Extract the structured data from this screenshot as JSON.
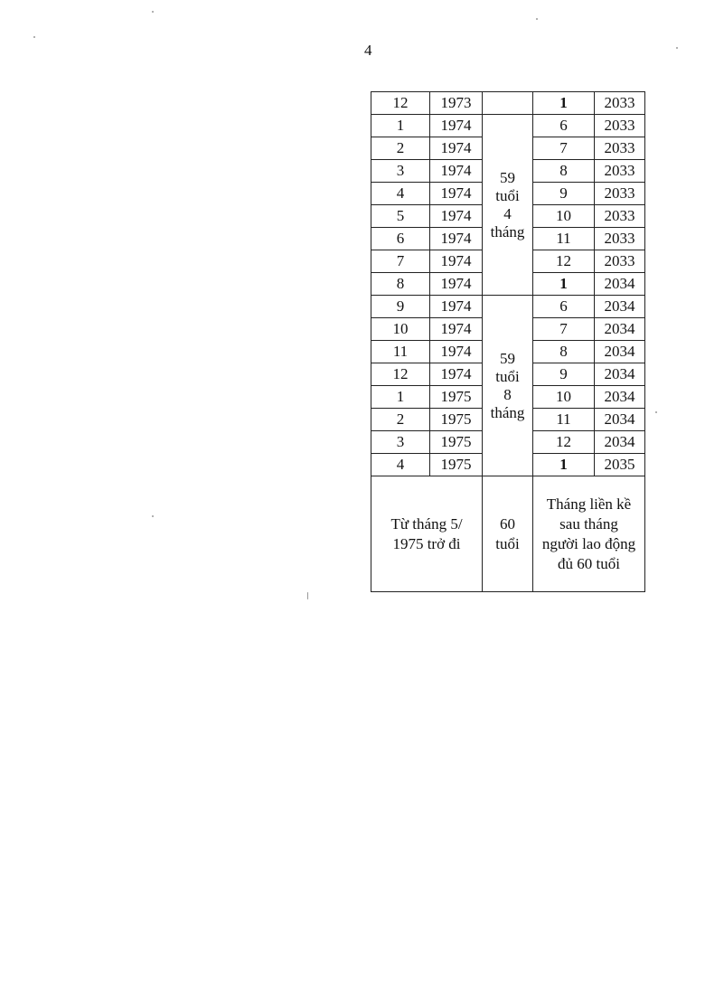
{
  "page_number": "4",
  "table": {
    "rows": [
      {
        "birth_month": "12",
        "birth_year": "1973",
        "retire_month": "1",
        "retire_year": "2033",
        "bold": true
      },
      {
        "birth_month": "1",
        "birth_year": "1974",
        "retire_month": "6",
        "retire_year": "2033",
        "bold": false
      },
      {
        "birth_month": "2",
        "birth_year": "1974",
        "retire_month": "7",
        "retire_year": "2033",
        "bold": false
      },
      {
        "birth_month": "3",
        "birth_year": "1974",
        "retire_month": "8",
        "retire_year": "2033",
        "bold": false
      },
      {
        "birth_month": "4",
        "birth_year": "1974",
        "retire_month": "9",
        "retire_year": "2033",
        "bold": false
      },
      {
        "birth_month": "5",
        "birth_year": "1974",
        "retire_month": "10",
        "retire_year": "2033",
        "bold": false
      },
      {
        "birth_month": "6",
        "birth_year": "1974",
        "retire_month": "11",
        "retire_year": "2033",
        "bold": false
      },
      {
        "birth_month": "7",
        "birth_year": "1974",
        "retire_month": "12",
        "retire_year": "2033",
        "bold": false
      },
      {
        "birth_month": "8",
        "birth_year": "1974",
        "retire_month": "1",
        "retire_year": "2034",
        "bold": true
      },
      {
        "birth_month": "9",
        "birth_year": "1974",
        "retire_month": "6",
        "retire_year": "2034",
        "bold": false
      },
      {
        "birth_month": "10",
        "birth_year": "1974",
        "retire_month": "7",
        "retire_year": "2034",
        "bold": false
      },
      {
        "birth_month": "11",
        "birth_year": "1974",
        "retire_month": "8",
        "retire_year": "2034",
        "bold": false
      },
      {
        "birth_month": "12",
        "birth_year": "1974",
        "retire_month": "9",
        "retire_year": "2034",
        "bold": false
      },
      {
        "birth_month": "1",
        "birth_year": "1975",
        "retire_month": "10",
        "retire_year": "2034",
        "bold": false
      },
      {
        "birth_month": "2",
        "birth_year": "1975",
        "retire_month": "11",
        "retire_year": "2034",
        "bold": false
      },
      {
        "birth_month": "3",
        "birth_year": "1975",
        "retire_month": "12",
        "retire_year": "2034",
        "bold": false
      },
      {
        "birth_month": "4",
        "birth_year": "1975",
        "retire_month": "1",
        "retire_year": "2035",
        "bold": true
      }
    ],
    "age_groups": [
      {
        "start": 0,
        "span": 1,
        "lines": []
      },
      {
        "start": 1,
        "span": 8,
        "lines": [
          "59",
          "tuổi",
          "4",
          "tháng"
        ]
      },
      {
        "start": 9,
        "span": 8,
        "lines": [
          "59",
          "tuổi",
          "8",
          "tháng"
        ]
      }
    ],
    "final_row": {
      "birth": [
        "Từ tháng 5/",
        "1975 trở đi"
      ],
      "age": [
        "60",
        "tuổi"
      ],
      "retire": [
        "Tháng liền kề",
        "sau tháng",
        "người lao động",
        "đủ 60 tuổi"
      ]
    }
  }
}
